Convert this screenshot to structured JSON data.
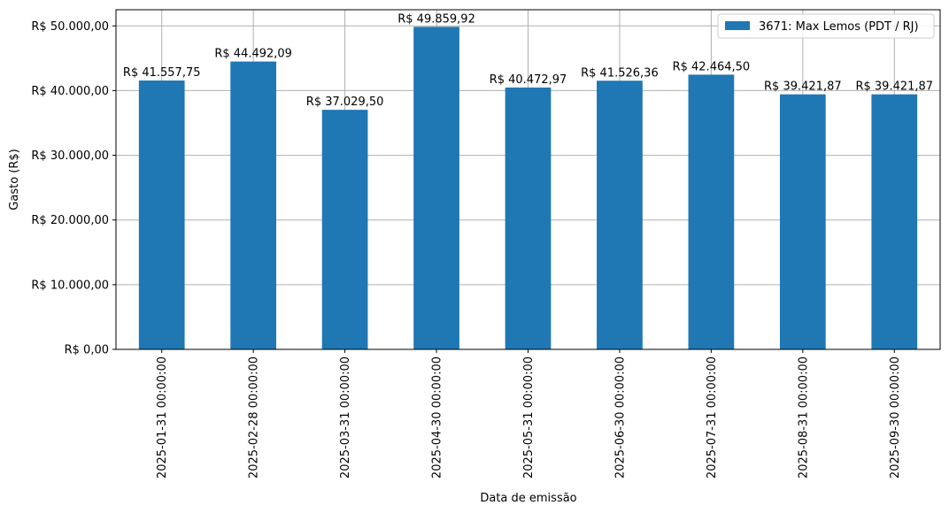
{
  "chart_data": {
    "type": "bar",
    "title": "",
    "xlabel": "Data de emissão",
    "ylabel": "Gasto (R$)",
    "ylim": [
      0,
      52500
    ],
    "yticks": [
      0,
      10000,
      20000,
      30000,
      40000,
      50000
    ],
    "ytick_labels": [
      "R$ 0,00",
      "R$ 10.000,00",
      "R$ 20.000,00",
      "R$ 30.000,00",
      "R$ 40.000,00",
      "R$ 50.000,00"
    ],
    "categories": [
      "2025-01-31 00:00:00",
      "2025-02-28 00:00:00",
      "2025-03-31 00:00:00",
      "2025-04-30 00:00:00",
      "2025-05-31 00:00:00",
      "2025-06-30 00:00:00",
      "2025-07-31 00:00:00",
      "2025-08-31 00:00:00",
      "2025-09-30 00:00:00"
    ],
    "series": [
      {
        "name": "3671: Max Lemos (PDT / RJ)",
        "color": "#1f77b4",
        "values": [
          41557.75,
          44492.09,
          37029.5,
          49859.92,
          40472.97,
          41526.36,
          42464.5,
          39421.87,
          39421.87
        ],
        "labels": [
          "R$ 41.557,75",
          "R$ 44.492,09",
          "R$ 37.029,50",
          "R$ 49.859,92",
          "R$ 40.472,97",
          "R$ 41.526,36",
          "R$ 42.464,50",
          "R$ 39.421,87",
          "R$ 39.421,87"
        ]
      }
    ],
    "grid": true,
    "legend_position": "top-right"
  }
}
